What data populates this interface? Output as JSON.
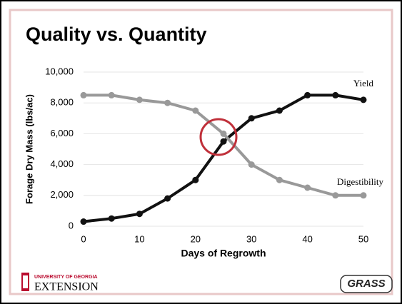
{
  "chart_data": {
    "type": "line",
    "title": "Quality vs. Quantity",
    "x_label": "Days of Regrowth",
    "y_label": "Forage Dry Mass (lbs/ac)",
    "x": [
      0,
      5,
      10,
      15,
      20,
      25,
      30,
      35,
      40,
      45,
      50
    ],
    "series": [
      {
        "name": "Yield",
        "color": "#111111",
        "values": [
          300,
          500,
          800,
          1800,
          3000,
          5500,
          7000,
          7500,
          8500,
          8500,
          8200
        ]
      },
      {
        "name": "Digestibility",
        "color": "#999999",
        "values": [
          8500,
          8500,
          8200,
          8000,
          7500,
          6000,
          4000,
          3000,
          2500,
          2000,
          2000
        ]
      }
    ],
    "xlim": [
      0,
      50
    ],
    "xticks": [
      0,
      10,
      20,
      30,
      40,
      50
    ],
    "ylim": [
      0,
      10000
    ],
    "yticks": [
      0,
      {
        "value": 2000,
        "label": "2,000"
      },
      {
        "value": 4000,
        "label": "4,000"
      },
      {
        "value": 6000,
        "label": "6,000"
      },
      {
        "value": 8000,
        "label": "8,000"
      },
      {
        "value": 10000,
        "label": "10,000"
      }
    ],
    "grid": true
  },
  "logos": {
    "university": "UNIVERSITY OF GEORGIA",
    "extension": "EXTENSION",
    "grass": "GRASS"
  }
}
